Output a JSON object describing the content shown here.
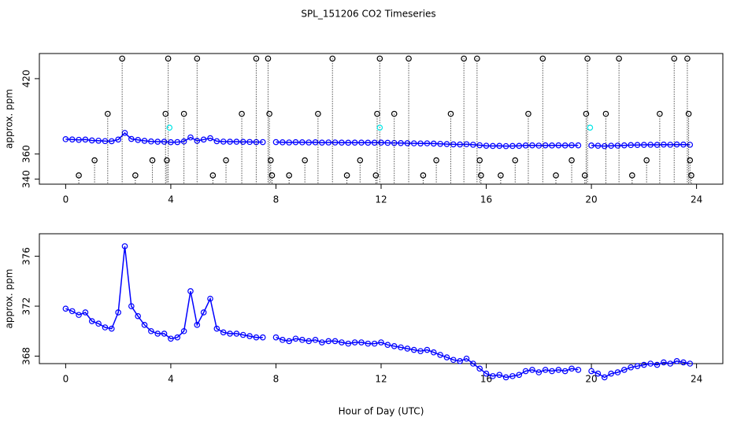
{
  "title": "SPL_151206  CO2 Timeseries",
  "chart_data": [
    {
      "type": "line",
      "ylabel": "approx. ppm",
      "xlim": [
        -1,
        25
      ],
      "ylim": [
        336,
        440
      ],
      "xticks": [
        0,
        4,
        8,
        12,
        16,
        20,
        24
      ],
      "yticks": [
        340,
        360,
        420
      ],
      "series": [
        {
          "color": "#0000ff",
          "style": "line",
          "x": [
            0,
            0.25,
            0.5,
            0.75,
            1,
            1.25,
            1.5,
            1.75,
            2,
            2.25,
            2.5,
            2.75,
            3,
            3.25,
            3.5,
            3.75,
            4,
            4.25,
            4.5,
            4.75,
            5,
            5.25,
            5.5,
            5.75,
            6,
            6.25,
            6.5,
            6.75,
            7,
            7.25,
            7.5,
            7.75,
            8,
            8.25,
            8.5,
            8.75,
            9,
            9.25,
            9.5,
            9.75,
            10,
            10.25,
            10.5,
            10.75,
            11,
            11.25,
            11.5,
            11.75,
            12,
            12.25,
            12.5,
            12.75,
            13,
            13.25,
            13.5,
            13.75,
            14,
            14.25,
            14.5,
            14.75,
            15,
            15.25,
            15.5,
            15.75,
            16,
            16.25,
            16.5,
            16.75,
            17,
            17.25,
            17.5,
            17.75,
            18,
            18.25,
            18.5,
            18.75,
            19,
            19.25,
            19.5,
            19.75,
            20,
            20.25,
            20.5,
            20.75,
            21,
            21.25,
            21.5,
            21.75,
            22,
            22.25,
            22.5,
            22.75,
            23,
            23.25,
            23.5,
            23.75
          ],
          "values": [
            371.8,
            371.6,
            371.3,
            371.5,
            370.8,
            370.6,
            370.3,
            370.2,
            371.5,
            376.8,
            372,
            371.2,
            370.5,
            370,
            369.8,
            369.8,
            369.4,
            369.5,
            370,
            373.2,
            370.5,
            371.5,
            372.6,
            370.2,
            369.9,
            369.8,
            369.8,
            369.7,
            369.6,
            369.5,
            369.5,
            null,
            369.5,
            369.3,
            369.2,
            369.4,
            369.3,
            369.2,
            369.3,
            369.1,
            369.2,
            369.2,
            369.1,
            369,
            369.1,
            369.1,
            369,
            369,
            369.1,
            368.9,
            368.8,
            368.7,
            368.6,
            368.5,
            368.4,
            368.5,
            368.3,
            368.1,
            367.9,
            367.7,
            367.6,
            367.8,
            367.4,
            367,
            366.6,
            366.4,
            366.5,
            366.3,
            366.4,
            366.5,
            366.8,
            366.9,
            366.7,
            366.9,
            366.8,
            366.9,
            366.8,
            367,
            366.9,
            null,
            366.8,
            366.6,
            366.3,
            366.6,
            366.7,
            366.9,
            367.1,
            367.2,
            367.3,
            367.4,
            367.3,
            367.5,
            367.4,
            367.6,
            367.5,
            367.4
          ]
        },
        {
          "color": "#000000",
          "style": "drop",
          "x": [
            0.5,
            1.1,
            1.6,
            2.15,
            2.65,
            3.3,
            3.8,
            3.85,
            3.9,
            4.5,
            5,
            5.6,
            6.1,
            6.7,
            7.25,
            7.7,
            7.75,
            7.8,
            7.85,
            8.5,
            9.1,
            9.6,
            10.15,
            10.7,
            11.2,
            11.8,
            11.85,
            11.95,
            12.5,
            13.05,
            13.6,
            14.1,
            14.65,
            15.15,
            15.65,
            15.75,
            15.8,
            16.55,
            17.1,
            17.6,
            18.15,
            18.65,
            19.25,
            19.75,
            19.8,
            19.85,
            20.55,
            21.05,
            21.55,
            22.1,
            22.6,
            23.15,
            23.65,
            23.7,
            23.75,
            23.8
          ],
          "values": [
            343,
            355,
            392,
            436,
            343,
            355,
            392,
            355,
            436,
            392,
            436,
            343,
            355,
            392,
            436,
            436,
            392,
            355,
            343,
            343,
            355,
            392,
            436,
            343,
            355,
            343,
            392,
            436,
            392,
            436,
            343,
            355,
            392,
            436,
            436,
            355,
            343,
            343,
            355,
            392,
            436,
            343,
            355,
            343,
            392,
            436,
            392,
            436,
            343,
            355,
            392,
            436,
            436,
            392,
            355,
            343
          ]
        },
        {
          "color": "#00e5e5",
          "style": "points",
          "x": [
            3.95,
            11.95,
            19.95
          ],
          "values": [
            381,
            381,
            381
          ]
        }
      ]
    },
    {
      "type": "line",
      "ylabel": "approx. ppm",
      "xlabel": "Hour of Day (UTC)",
      "xlim": [
        -1,
        25
      ],
      "ylim": [
        367.4,
        377.8
      ],
      "xticks": [
        0,
        4,
        8,
        12,
        16,
        20,
        24
      ],
      "yticks": [
        368,
        372,
        376
      ],
      "series": [
        {
          "color": "#0000ff",
          "style": "line",
          "x": [
            0,
            0.25,
            0.5,
            0.75,
            1,
            1.25,
            1.5,
            1.75,
            2,
            2.25,
            2.5,
            2.75,
            3,
            3.25,
            3.5,
            3.75,
            4,
            4.25,
            4.5,
            4.75,
            5,
            5.25,
            5.5,
            5.75,
            6,
            6.25,
            6.5,
            6.75,
            7,
            7.25,
            7.5,
            7.75,
            8,
            8.25,
            8.5,
            8.75,
            9,
            9.25,
            9.5,
            9.75,
            10,
            10.25,
            10.5,
            10.75,
            11,
            11.25,
            11.5,
            11.75,
            12,
            12.25,
            12.5,
            12.75,
            13,
            13.25,
            13.5,
            13.75,
            14,
            14.25,
            14.5,
            14.75,
            15,
            15.25,
            15.5,
            15.75,
            16,
            16.25,
            16.5,
            16.75,
            17,
            17.25,
            17.5,
            17.75,
            18,
            18.25,
            18.5,
            18.75,
            19,
            19.25,
            19.5,
            19.75,
            20,
            20.25,
            20.5,
            20.75,
            21,
            21.25,
            21.5,
            21.75,
            22,
            22.25,
            22.5,
            22.75,
            23,
            23.25,
            23.5,
            23.75
          ],
          "values": [
            371.8,
            371.6,
            371.3,
            371.5,
            370.8,
            370.6,
            370.3,
            370.2,
            371.5,
            376.8,
            372,
            371.2,
            370.5,
            370,
            369.8,
            369.8,
            369.4,
            369.5,
            370,
            373.2,
            370.5,
            371.5,
            372.6,
            370.2,
            369.9,
            369.8,
            369.8,
            369.7,
            369.6,
            369.5,
            369.5,
            null,
            369.5,
            369.3,
            369.2,
            369.4,
            369.3,
            369.2,
            369.3,
            369.1,
            369.2,
            369.2,
            369.1,
            369,
            369.1,
            369.1,
            369,
            369,
            369.1,
            368.9,
            368.8,
            368.7,
            368.6,
            368.5,
            368.4,
            368.5,
            368.3,
            368.1,
            367.9,
            367.7,
            367.6,
            367.8,
            367.4,
            367,
            366.6,
            366.4,
            366.5,
            366.3,
            366.4,
            366.5,
            366.8,
            366.9,
            366.7,
            366.9,
            366.8,
            366.9,
            366.8,
            367,
            366.9,
            null,
            366.8,
            366.6,
            366.3,
            366.6,
            366.7,
            366.9,
            367.1,
            367.2,
            367.3,
            367.4,
            367.3,
            367.5,
            367.4,
            367.6,
            367.5,
            367.4
          ]
        }
      ]
    }
  ]
}
